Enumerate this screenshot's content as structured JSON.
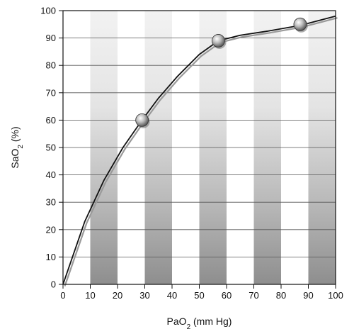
{
  "chart_data": {
    "type": "line",
    "xlabel": {
      "main": "PaO",
      "sub": "2",
      "rest": " (mm Hg)"
    },
    "ylabel": {
      "main": "SaO",
      "sub": "2",
      "rest": " (%)"
    },
    "xlim": [
      0,
      100
    ],
    "ylim": [
      0,
      100
    ],
    "x_ticks": [
      0,
      10,
      20,
      30,
      40,
      50,
      60,
      70,
      80,
      90,
      100
    ],
    "y_ticks": [
      0,
      10,
      20,
      30,
      40,
      50,
      60,
      70,
      80,
      90,
      100
    ],
    "grid": {
      "horizontal": true,
      "vertical": false
    },
    "shaded_bands": [
      [
        10,
        20
      ],
      [
        30,
        40
      ],
      [
        50,
        60
      ],
      [
        70,
        80
      ],
      [
        90,
        100
      ]
    ],
    "series": [
      {
        "x": [
          0,
          8,
          15,
          22,
          29,
          35,
          42,
          50,
          57,
          65,
          75,
          87,
          100
        ],
        "y": [
          0,
          23,
          38,
          50,
          60,
          68,
          76,
          84,
          89,
          91,
          92.5,
          94.6,
          98
        ],
        "color": "#111111",
        "shadow_color": "#9a9a9a"
      }
    ],
    "markers": [
      {
        "x": 29,
        "y": 60
      },
      {
        "x": 57,
        "y": 89
      },
      {
        "x": 87,
        "y": 95
      }
    ]
  }
}
